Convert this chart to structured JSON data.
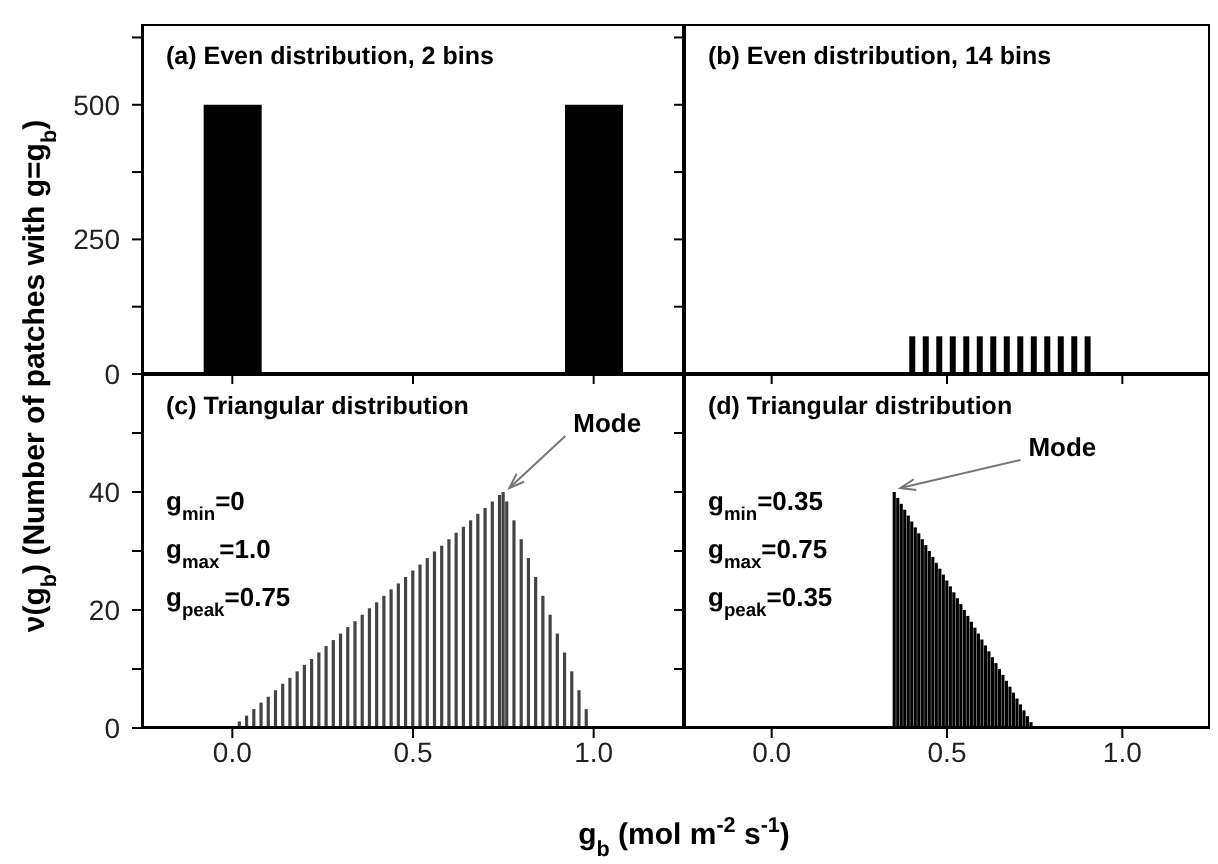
{
  "chart_data": [
    {
      "type": "bar",
      "title": "(a)  Even distribution, 2 bins",
      "x": [
        0,
        1
      ],
      "values": [
        500,
        500
      ],
      "color": "#000000",
      "xlim": [
        -0.25,
        1.25
      ],
      "xticks": [
        {
          "value": 0,
          "label": null
        },
        {
          "value": 0.5,
          "label": null
        },
        {
          "value": 1,
          "label": null
        }
      ],
      "ylim": [
        0,
        650
      ],
      "yticks": [
        0,
        {
          "value": 125,
          "label": null
        },
        250,
        {
          "value": 375,
          "label": null
        },
        500,
        {
          "value": 625,
          "label": null
        }
      ],
      "tick_labels": "y"
    },
    {
      "type": "bar",
      "title": "(b)  Even distribution, 14 bins",
      "x": [
        0.4,
        0.4385,
        0.477,
        0.5155,
        0.554,
        0.5925,
        0.631,
        0.6695,
        0.708,
        0.7465,
        0.785,
        0.8235,
        0.862,
        0.9
      ],
      "values": [
        70,
        70,
        70,
        70,
        70,
        70,
        70,
        70,
        70,
        70,
        70,
        70,
        70,
        70
      ],
      "color": "#000000",
      "xlim": [
        -0.25,
        1.25
      ],
      "xticks": [
        {
          "value": 0,
          "label": null
        },
        {
          "value": 0.5,
          "label": null
        },
        {
          "value": 1,
          "label": null
        }
      ],
      "ylim": [
        0,
        650
      ],
      "yticks": [
        {
          "value": 0,
          "label": null
        },
        {
          "value": 125,
          "label": null
        },
        {
          "value": 250,
          "label": null
        },
        {
          "value": 375,
          "label": null
        },
        {
          "value": 500,
          "label": null
        },
        {
          "value": 625,
          "label": null
        }
      ],
      "tick_labels": false
    },
    {
      "type": "bar",
      "title": "(c)  Triangular distribution",
      "xlabel": "g$_{b}$ (mol m$^{-2}$ s$^{-1}$)",
      "ylabel": "ν(g$_{b}$)    (Number of patches with g=g$_{b}$)",
      "x": [
        0.02,
        0.04,
        0.06,
        0.08,
        0.1,
        0.12,
        0.14,
        0.16,
        0.18,
        0.2,
        0.22,
        0.24,
        0.26,
        0.28,
        0.3,
        0.32,
        0.34,
        0.36,
        0.38,
        0.4,
        0.42,
        0.44,
        0.46,
        0.48,
        0.5,
        0.52,
        0.54,
        0.56,
        0.58,
        0.6,
        0.62,
        0.64,
        0.66,
        0.68,
        0.7,
        0.72,
        0.74,
        0.75,
        0.76,
        0.78,
        0.8,
        0.82,
        0.84,
        0.86,
        0.88,
        0.9,
        0.92,
        0.94,
        0.96,
        0.98
      ],
      "values": [
        1.1,
        2.1,
        3.2,
        4.3,
        5.3,
        6.4,
        7.5,
        8.5,
        9.6,
        10.7,
        11.7,
        12.8,
        13.9,
        14.9,
        16,
        17.1,
        18.1,
        19.2,
        20.3,
        21.3,
        22.4,
        23.5,
        24.5,
        25.6,
        26.7,
        27.7,
        28.8,
        29.9,
        30.9,
        32,
        33.1,
        34.1,
        35.2,
        36.3,
        37.3,
        38.4,
        39.5,
        40,
        38.4,
        35.2,
        32,
        28.8,
        25.6,
        22.4,
        19.2,
        16,
        12.8,
        9.6,
        6.4,
        3.2
      ],
      "color": "#444444",
      "xlim": [
        -0.25,
        1.25
      ],
      "xticks": [
        {
          "value": 0,
          "label": "0.0"
        },
        {
          "value": 0.5,
          "label": "0.5"
        },
        {
          "value": 1,
          "label": "1.0"
        }
      ],
      "ylim": [
        0,
        60
      ],
      "yticks": [
        0,
        {
          "value": 10,
          "label": null
        },
        20,
        {
          "value": 30,
          "label": null
        },
        40,
        {
          "value": 50,
          "label": null
        }
      ],
      "annotations": [
        {
          "text": "Mode",
          "x": 0.75,
          "y": 40
        },
        "g$_{min}$=0",
        "g$_{max}$=1.0",
        "g$_{peak}$=0.75"
      ]
    },
    {
      "type": "bar",
      "title": "(d)  Triangular distribution",
      "x": [
        0.35,
        0.36,
        0.37,
        0.38,
        0.39,
        0.4,
        0.41,
        0.42,
        0.43,
        0.44,
        0.45,
        0.46,
        0.47,
        0.48,
        0.49,
        0.5,
        0.51,
        0.52,
        0.53,
        0.54,
        0.55,
        0.56,
        0.57,
        0.58,
        0.59,
        0.6,
        0.61,
        0.62,
        0.63,
        0.64,
        0.65,
        0.66,
        0.67,
        0.68,
        0.69,
        0.7,
        0.71,
        0.72,
        0.73,
        0.74
      ],
      "values": [
        40,
        39,
        38,
        37,
        36,
        35,
        34,
        33,
        32,
        31,
        30,
        29,
        28,
        27,
        26,
        25,
        24,
        23,
        22,
        21,
        20,
        19,
        18,
        17,
        16,
        15,
        14,
        13,
        12,
        11,
        10,
        9,
        8,
        7,
        6,
        5,
        4,
        3,
        2,
        1
      ],
      "color": "#000000",
      "xlim": [
        -0.25,
        1.25
      ],
      "xticks": [
        {
          "value": 0,
          "label": "0.0"
        },
        {
          "value": 0.5,
          "label": "0.5"
        },
        {
          "value": 1,
          "label": "1.0"
        }
      ],
      "ylim": [
        0,
        60
      ],
      "yticks": [
        {
          "value": 0,
          "label": null
        },
        {
          "value": 10,
          "label": null
        },
        {
          "value": 20,
          "label": null
        },
        {
          "value": 30,
          "label": null
        },
        {
          "value": 40,
          "label": null
        },
        {
          "value": 50,
          "label": null
        }
      ],
      "tick_labels": "x",
      "annotations": [
        {
          "text": "Mode",
          "x": 0.35,
          "y": 40
        },
        "g$_{min}$=0.35",
        "g$_{max}$=0.75",
        "g$_{peak}$=0.35"
      ]
    }
  ]
}
